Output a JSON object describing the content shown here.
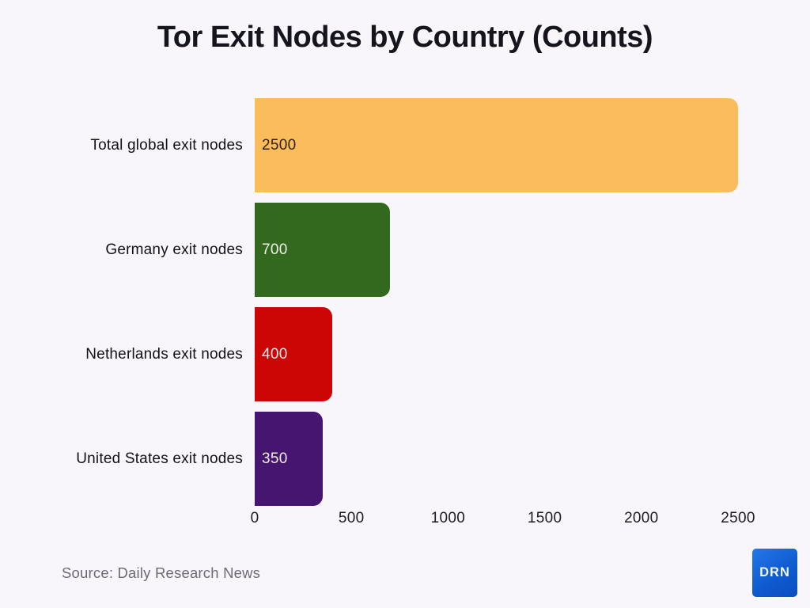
{
  "title": "Tor Exit Nodes by Country (Counts)",
  "chart_data": {
    "type": "bar",
    "orientation": "horizontal",
    "title": "Tor Exit Nodes by Country (Counts)",
    "categories": [
      "Total global exit nodes",
      "Germany exit nodes",
      "Netherlands exit nodes",
      "United States exit nodes"
    ],
    "values": [
      2500,
      700,
      400,
      350
    ],
    "bar_colors": [
      "#FBBC5C",
      "#33691E",
      "#CC0505",
      "#451570"
    ],
    "value_label_colors": [
      "#33210A",
      "#EEF3EA",
      "#FBE9E9",
      "#F3EDF8"
    ],
    "value_labels_position": "inside-start",
    "xticks": [
      0,
      500,
      1000,
      1500,
      2000,
      2500
    ],
    "xlim": [
      0,
      2500
    ],
    "xlabel": "",
    "ylabel": "",
    "grid": false,
    "legend": false
  },
  "footer": {
    "source": "Source: Daily Research News",
    "logo_text": "DRN"
  },
  "colors": {
    "background": "#F8F6FB",
    "title_text": "#16151D",
    "label_text": "#121118",
    "axis_text": "#1D1C23",
    "source_text": "#6D6A76",
    "logo_blue": "#0F5BD0",
    "logo_text": "#FFFFFF",
    "bar_orange": "#FBBC5C",
    "bar_green": "#33691E",
    "bar_red": "#CC0505",
    "bar_purple": "#451570"
  }
}
